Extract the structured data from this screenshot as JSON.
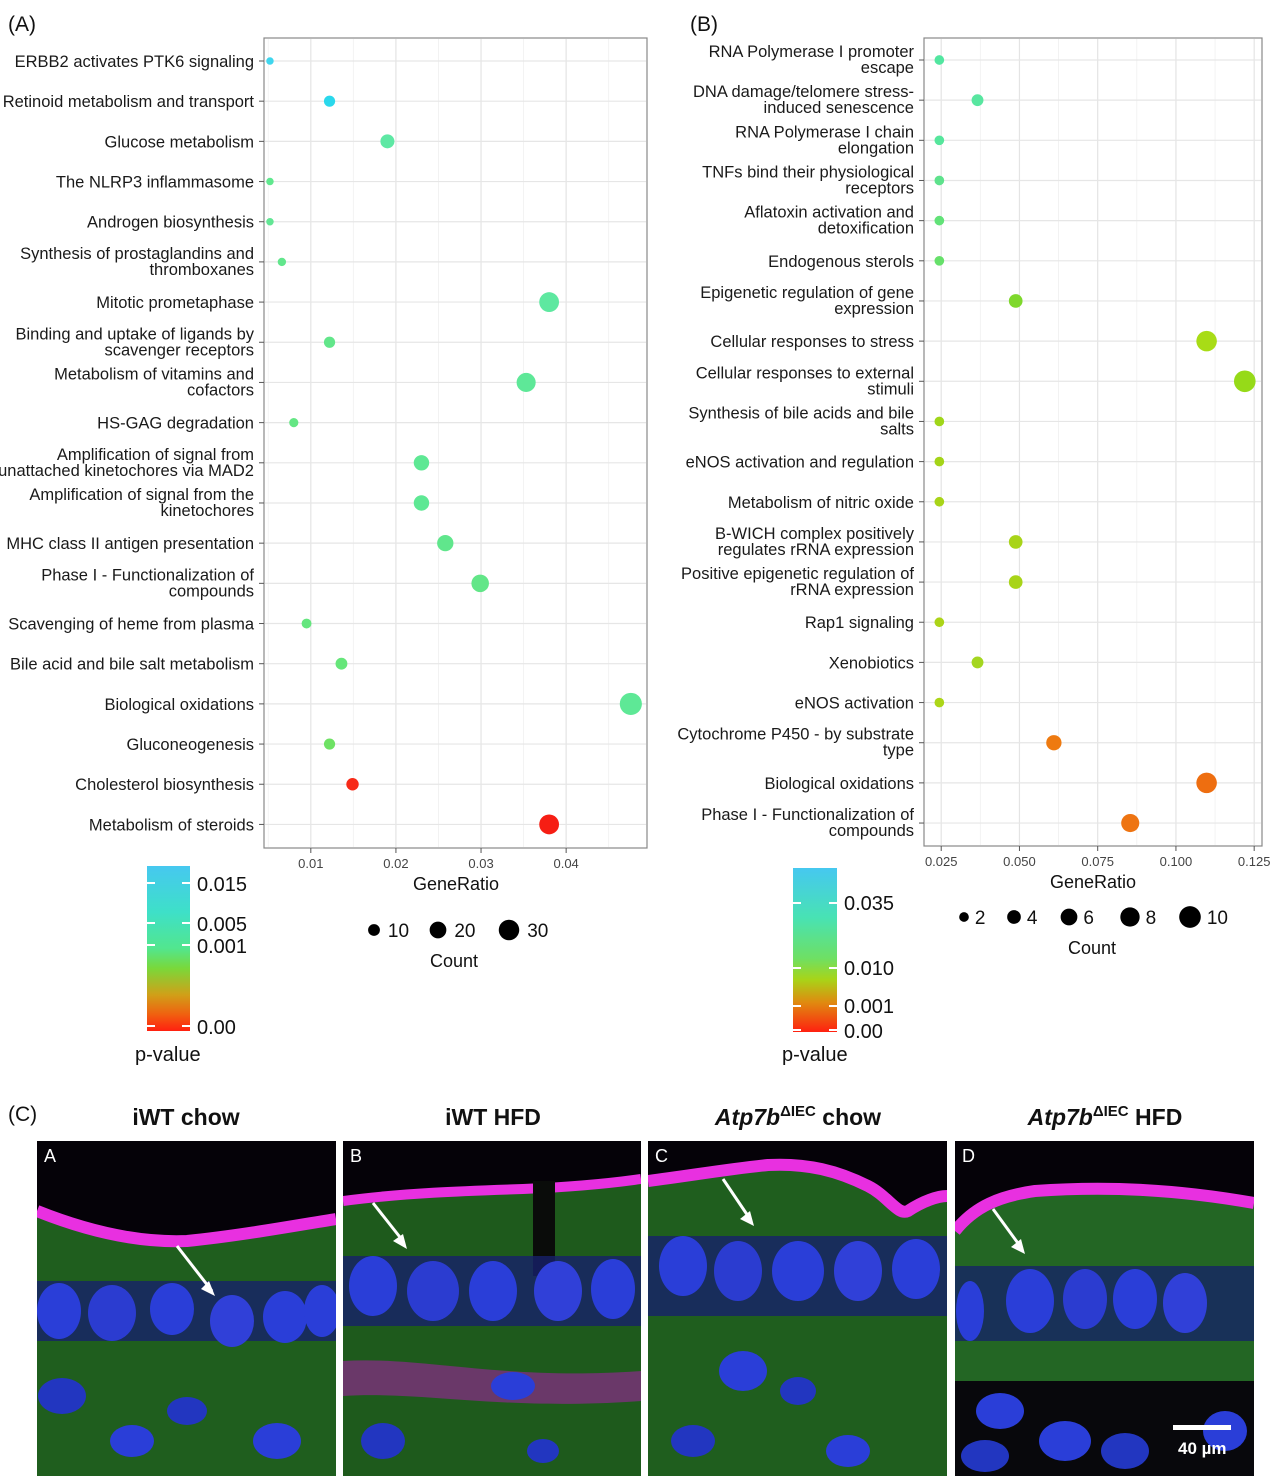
{
  "panels": [
    {
      "label": "(A)",
      "type": "scatter",
      "xlabel": "GeneRatio",
      "x_ticks": [
        "0.01",
        "0.02",
        "0.03",
        "0.04"
      ],
      "x_tick_values": [
        0.01,
        0.02,
        0.03,
        0.04
      ],
      "xlim": [
        0.0045,
        0.0495
      ],
      "categories": [
        "ERBB2 activates PTK6 signaling",
        "Retinoid metabolism and transport",
        "Glucose metabolism",
        "The NLRP3 inflammasome",
        "Androgen biosynthesis",
        "Synthesis of prostaglandins and\nthromboxanes",
        "Mitotic prometaphase",
        "Binding and uptake of ligands by\nscavenger receptors",
        "Metabolism of vitamins and\ncofactors",
        "HS-GAG degradation",
        "Amplification of signal from\nunattached kinetochores via MAD2",
        "Amplification of signal from the\nkinetochores",
        "MHC class II antigen presentation",
        "Phase I - Functionalization of\ncompounds",
        "Scavenging of heme from plasma",
        "Bile acid and bile salt metabolism",
        "Biological oxidations",
        "Gluconeogenesis",
        "Cholesterol biosynthesis",
        "Metabolism of steroids"
      ],
      "gene_ratio": [
        0.0052,
        0.0122,
        0.019,
        0.0052,
        0.0052,
        0.0066,
        0.038,
        0.0122,
        0.0353,
        0.008,
        0.023,
        0.023,
        0.0258,
        0.0299,
        0.0095,
        0.0136,
        0.0476,
        0.0122,
        0.0149,
        0.038
      ],
      "count": [
        4,
        9,
        14,
        4,
        4,
        5,
        28,
        9,
        26,
        6,
        17,
        17,
        19,
        22,
        7,
        10,
        35,
        9,
        11,
        28
      ],
      "color": [
        "#3fd6ee",
        "#2ad8ec",
        "#5ee8a4",
        "#60e88e",
        "#62e694",
        "#62e68c",
        "#5ee8a0",
        "#62e68a",
        "#5ee898",
        "#64e684",
        "#5ee894",
        "#5ee894",
        "#60e68c",
        "#62e688",
        "#64e67e",
        "#66e67a",
        "#5ee896",
        "#6ee264",
        "#f72a18",
        "#f61e14"
      ],
      "legend": {
        "color_title": "p-value",
        "color_labels": [
          "0.015",
          "0.005",
          "0.001",
          "0.00"
        ],
        "size_title": "Count",
        "size_labels": [
          "10",
          "20",
          "30"
        ],
        "size_values": [
          10,
          20,
          30
        ]
      }
    },
    {
      "label": "(B)",
      "type": "scatter",
      "xlabel": "GeneRatio",
      "x_ticks": [
        "0.025",
        "0.050",
        "0.075",
        "0.100",
        "0.125"
      ],
      "x_tick_values": [
        0.025,
        0.05,
        0.075,
        0.1,
        0.125
      ],
      "xlim": [
        0.0195,
        0.1275
      ],
      "categories": [
        "RNA Polymerase I promoter\nescape",
        "DNA damage/telomere stress-\ninduced senescence",
        "RNA Polymerase I chain\nelongation",
        "TNFs bind their physiological\nreceptors",
        "Aflatoxin activation and\ndetoxification",
        "Endogenous sterols",
        "Epigenetic regulation of gene\nexpression",
        "Cellular responses to stress",
        "Cellular responses to external\nstimuli",
        "Synthesis of bile acids and bile\nsalts",
        "eNOS activation and regulation",
        "Metabolism of nitric oxide",
        "B-WICH complex positively\nregulates rRNA expression",
        "Positive epigenetic regulation of\nrRNA expression",
        "Rap1 signaling",
        "Xenobiotics",
        "eNOS activation",
        "Cytochrome P450 - by substrate\ntype",
        "Biological oxidations",
        "Phase I - Functionalization of\ncompounds"
      ],
      "gene_ratio": [
        0.0244,
        0.0366,
        0.0244,
        0.0244,
        0.0244,
        0.0244,
        0.0488,
        0.1098,
        0.122,
        0.0244,
        0.0244,
        0.0244,
        0.0488,
        0.0488,
        0.0244,
        0.0366,
        0.0244,
        0.061,
        0.1098,
        0.0854
      ],
      "count": [
        2,
        3,
        2,
        2,
        2,
        2,
        4,
        9,
        10,
        2,
        2,
        2,
        4,
        4,
        2,
        3,
        2,
        5,
        9,
        7
      ],
      "color": [
        "#52e6a0",
        "#58e6a0",
        "#56e69c",
        "#5ee28c",
        "#62e278",
        "#66e06a",
        "#7ed82c",
        "#a8dc16",
        "#96da18",
        "#a0d61a",
        "#a4d418",
        "#a8d418",
        "#a8d418",
        "#a8d418",
        "#acd418",
        "#a4d620",
        "#acd618",
        "#ee7a10",
        "#ee6e10",
        "#ee7412"
      ],
      "legend": {
        "color_title": "p-value",
        "color_labels": [
          "0.035",
          "0.010",
          "0.001",
          "0.00"
        ],
        "size_title": "Count",
        "size_labels": [
          "2",
          "4",
          "6",
          "8",
          "10"
        ],
        "size_values": [
          2,
          4,
          6,
          8,
          10
        ]
      }
    }
  ],
  "micrographs": {
    "label": "(C)",
    "titles": [
      {
        "main": "iWT chow",
        "sup": "",
        "tail": ""
      },
      {
        "main": "iWT HFD",
        "sup": "",
        "tail": ""
      },
      {
        "main": "Atp7b",
        "sup": "ΔIEC",
        "tail": " chow"
      },
      {
        "main": "Atp7b",
        "sup": "ΔIEC",
        "tail": " HFD"
      }
    ],
    "tiles": [
      "A",
      "B",
      "C",
      "D"
    ],
    "scale_bar": "40 µm",
    "colors": {
      "membrane": "#e830e0",
      "nuclei": "#2a3ed8",
      "cytoplasm": "#2f9a2a",
      "background": "#050208"
    }
  }
}
